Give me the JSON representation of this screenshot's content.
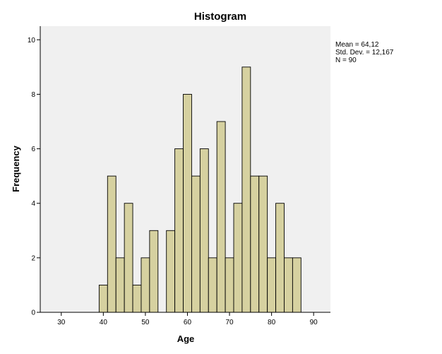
{
  "chart_data": {
    "type": "bar",
    "title": "Histogram",
    "xlabel": "Age",
    "ylabel": "Frequency",
    "xlim": [
      25,
      94
    ],
    "ylim": [
      0,
      10.5
    ],
    "x_ticks": [
      30,
      40,
      50,
      60,
      70,
      80,
      90
    ],
    "y_ticks": [
      0,
      2,
      4,
      6,
      8,
      10
    ],
    "bin_width": 2,
    "bins": [
      {
        "start": 39,
        "end": 41,
        "count": 1
      },
      {
        "start": 41,
        "end": 43,
        "count": 5
      },
      {
        "start": 43,
        "end": 45,
        "count": 2
      },
      {
        "start": 45,
        "end": 47,
        "count": 4
      },
      {
        "start": 47,
        "end": 49,
        "count": 1
      },
      {
        "start": 49,
        "end": 51,
        "count": 2
      },
      {
        "start": 51,
        "end": 53,
        "count": 3
      },
      {
        "start": 55,
        "end": 57,
        "count": 3
      },
      {
        "start": 57,
        "end": 59,
        "count": 6
      },
      {
        "start": 59,
        "end": 61,
        "count": 8
      },
      {
        "start": 61,
        "end": 63,
        "count": 5
      },
      {
        "start": 63,
        "end": 65,
        "count": 6
      },
      {
        "start": 65,
        "end": 67,
        "count": 2
      },
      {
        "start": 67,
        "end": 69,
        "count": 7
      },
      {
        "start": 69,
        "end": 71,
        "count": 2
      },
      {
        "start": 71,
        "end": 73,
        "count": 4
      },
      {
        "start": 73,
        "end": 75,
        "count": 9
      },
      {
        "start": 75,
        "end": 77,
        "count": 5
      },
      {
        "start": 77,
        "end": 79,
        "count": 5
      },
      {
        "start": 79,
        "end": 81,
        "count": 2
      },
      {
        "start": 81,
        "end": 83,
        "count": 4
      },
      {
        "start": 83,
        "end": 85,
        "count": 2
      },
      {
        "start": 85,
        "end": 87,
        "count": 2
      }
    ],
    "stats": {
      "mean": "Mean = 64,12",
      "std_dev": "Std. Dev. = 12,167",
      "n": "N = 90"
    },
    "colors": {
      "bar_fill": "#d6d1a0",
      "bar_stroke": "#000000",
      "plot_background": "#f0f0f0",
      "page_background": "#ffffff"
    },
    "grid": false,
    "legend": "none"
  }
}
